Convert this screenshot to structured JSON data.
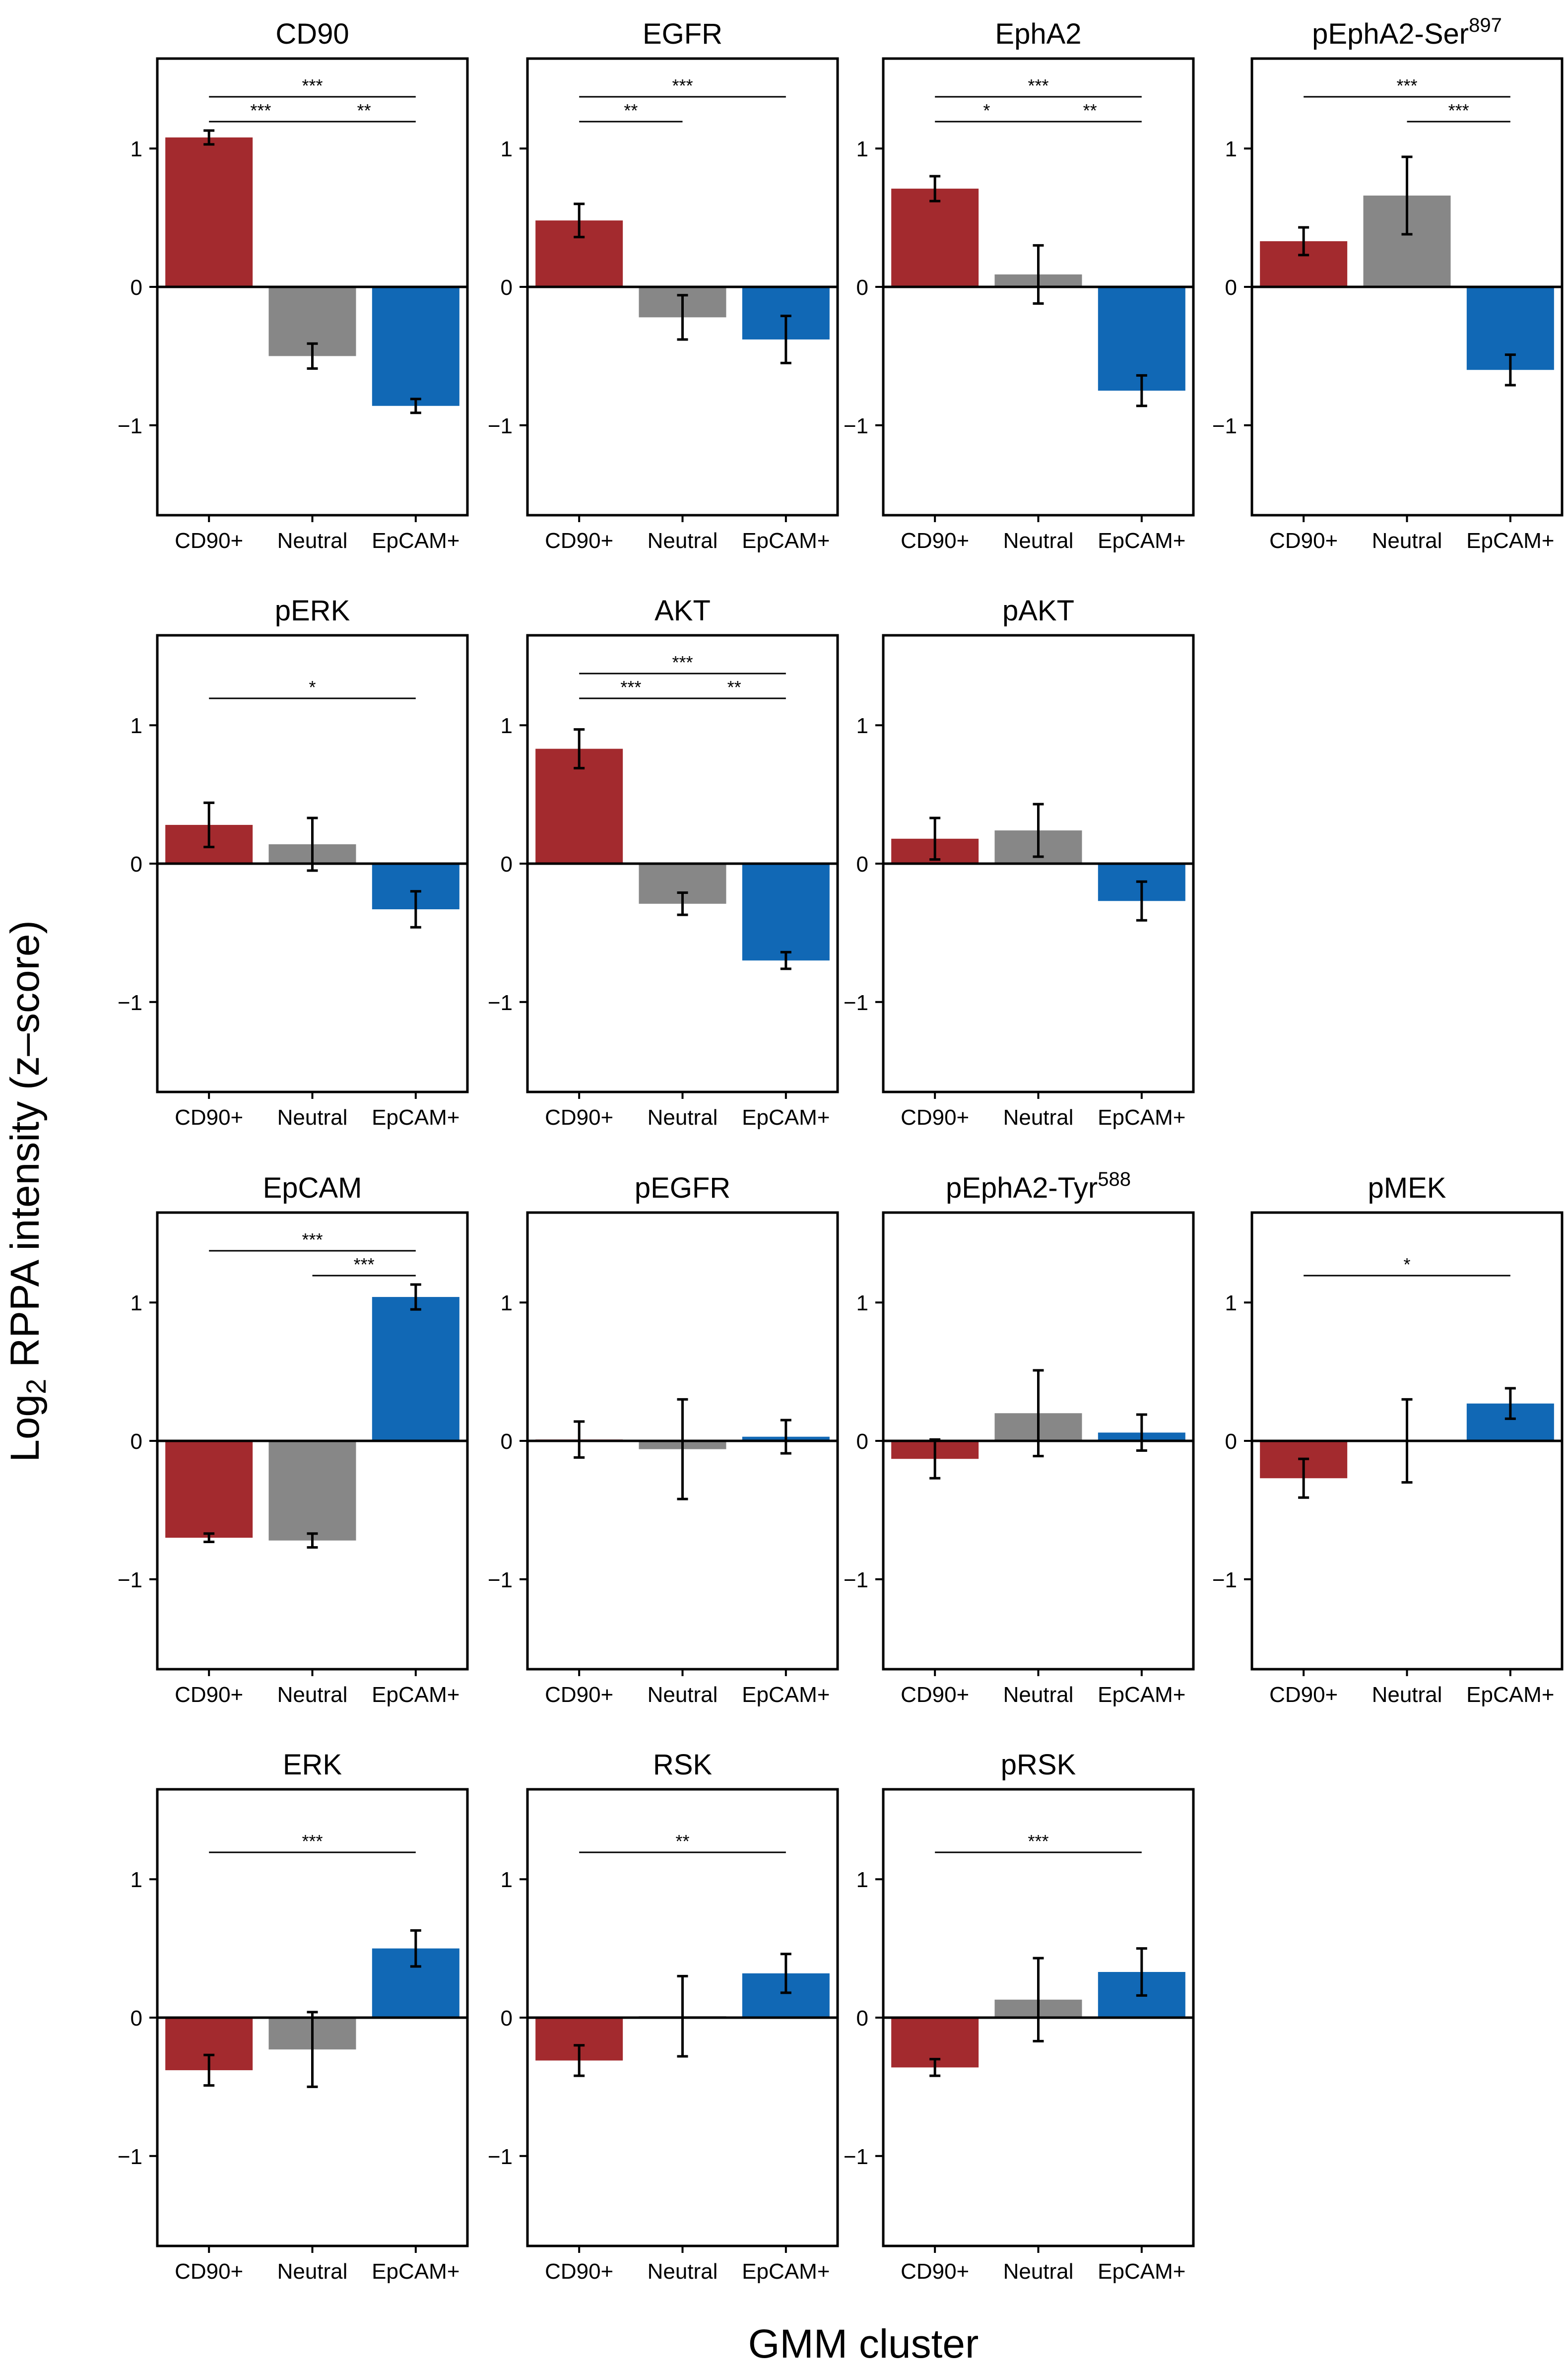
{
  "figure": {
    "ylabel_main": "Log",
    "ylabel_sub": "2",
    "ylabel_rest": " RPPA intensity (z–score)",
    "xlabel": "GMM cluster"
  },
  "colors": {
    "cd90": "#A32A2E",
    "neutral": "#878787",
    "epcam": "#1168B5",
    "axis": "#000000"
  },
  "chart_data": [
    {
      "type": "bar",
      "title": "CD90",
      "title_sup": "",
      "categories": [
        "CD90+",
        "Neutral",
        "EpCAM+"
      ],
      "values": [
        1.08,
        -0.5,
        -0.86
      ],
      "errors": [
        0.05,
        0.09,
        0.05
      ],
      "ylim": [
        -1.65,
        1.65
      ],
      "yticks": [
        -1,
        0,
        1
      ],
      "ytick_labels": [
        "−1",
        "0",
        "1"
      ],
      "significance": [
        {
          "from": 0,
          "to": 2,
          "level": 1,
          "label": "***"
        },
        {
          "from": 0,
          "to": 1,
          "level": 0,
          "label": "***"
        },
        {
          "from": 1,
          "to": 2,
          "level": 0,
          "label": "**"
        }
      ]
    },
    {
      "type": "bar",
      "title": "EGFR",
      "title_sup": "",
      "categories": [
        "CD90+",
        "Neutral",
        "EpCAM+"
      ],
      "values": [
        0.48,
        -0.22,
        -0.38
      ],
      "errors": [
        0.12,
        0.16,
        0.17
      ],
      "ylim": [
        -1.65,
        1.65
      ],
      "yticks": [
        -1,
        0,
        1
      ],
      "ytick_labels": [
        "−1",
        "0",
        "1"
      ],
      "significance": [
        {
          "from": 0,
          "to": 2,
          "level": 1,
          "label": "***"
        },
        {
          "from": 0,
          "to": 1,
          "level": 0,
          "label": "**"
        }
      ]
    },
    {
      "type": "bar",
      "title": "EphA2",
      "title_sup": "",
      "categories": [
        "CD90+",
        "Neutral",
        "EpCAM+"
      ],
      "values": [
        0.71,
        0.09,
        -0.75
      ],
      "errors": [
        0.09,
        0.21,
        0.11
      ],
      "ylim": [
        -1.65,
        1.65
      ],
      "yticks": [
        -1,
        0,
        1
      ],
      "ytick_labels": [
        "−1",
        "0",
        "1"
      ],
      "significance": [
        {
          "from": 0,
          "to": 2,
          "level": 1,
          "label": "***"
        },
        {
          "from": 0,
          "to": 1,
          "level": 0,
          "label": "*"
        },
        {
          "from": 1,
          "to": 2,
          "level": 0,
          "label": "**"
        }
      ]
    },
    {
      "type": "bar",
      "title": "pEphA2-Ser",
      "title_sup": "897",
      "categories": [
        "CD90+",
        "Neutral",
        "EpCAM+"
      ],
      "values": [
        0.33,
        0.66,
        -0.6
      ],
      "errors": [
        0.1,
        0.28,
        0.11
      ],
      "ylim": [
        -1.65,
        1.65
      ],
      "yticks": [
        -1,
        0,
        1
      ],
      "ytick_labels": [
        "−1",
        "0",
        "1"
      ],
      "significance": [
        {
          "from": 0,
          "to": 2,
          "level": 1,
          "label": "***"
        },
        {
          "from": 1,
          "to": 2,
          "level": 0,
          "label": "***"
        }
      ]
    },
    {
      "type": "bar",
      "title": "pERK",
      "title_sup": "",
      "categories": [
        "CD90+",
        "Neutral",
        "EpCAM+"
      ],
      "values": [
        0.28,
        0.14,
        -0.33
      ],
      "errors": [
        0.16,
        0.19,
        0.13
      ],
      "ylim": [
        -1.65,
        1.65
      ],
      "yticks": [
        -1,
        0,
        1
      ],
      "ytick_labels": [
        "−1",
        "0",
        "1"
      ],
      "significance": [
        {
          "from": 0,
          "to": 2,
          "level": 0,
          "label": "*"
        }
      ]
    },
    {
      "type": "bar",
      "title": "AKT",
      "title_sup": "",
      "categories": [
        "CD90+",
        "Neutral",
        "EpCAM+"
      ],
      "values": [
        0.83,
        -0.29,
        -0.7
      ],
      "errors": [
        0.14,
        0.08,
        0.06
      ],
      "ylim": [
        -1.65,
        1.65
      ],
      "yticks": [
        -1,
        0,
        1
      ],
      "ytick_labels": [
        "−1",
        "0",
        "1"
      ],
      "significance": [
        {
          "from": 0,
          "to": 2,
          "level": 1,
          "label": "***"
        },
        {
          "from": 0,
          "to": 1,
          "level": 0,
          "label": "***"
        },
        {
          "from": 1,
          "to": 2,
          "level": 0,
          "label": "**"
        }
      ]
    },
    {
      "type": "bar",
      "title": "pAKT",
      "title_sup": "",
      "categories": [
        "CD90+",
        "Neutral",
        "EpCAM+"
      ],
      "values": [
        0.18,
        0.24,
        -0.27
      ],
      "errors": [
        0.15,
        0.19,
        0.14
      ],
      "ylim": [
        -1.65,
        1.65
      ],
      "yticks": [
        -1,
        0,
        1
      ],
      "ytick_labels": [
        "−1",
        "0",
        "1"
      ],
      "significance": []
    },
    {
      "type": "bar",
      "title": "EpCAM",
      "title_sup": "",
      "categories": [
        "CD90+",
        "Neutral",
        "EpCAM+"
      ],
      "values": [
        -0.7,
        -0.72,
        1.04
      ],
      "errors": [
        0.03,
        0.05,
        0.09
      ],
      "ylim": [
        -1.65,
        1.65
      ],
      "yticks": [
        -1,
        0,
        1
      ],
      "ytick_labels": [
        "−1",
        "0",
        "1"
      ],
      "significance": [
        {
          "from": 0,
          "to": 2,
          "level": 1,
          "label": "***"
        },
        {
          "from": 1,
          "to": 2,
          "level": 0,
          "label": "***"
        }
      ]
    },
    {
      "type": "bar",
      "title": "pEGFR",
      "title_sup": "",
      "categories": [
        "CD90+",
        "Neutral",
        "EpCAM+"
      ],
      "values": [
        0.01,
        -0.06,
        0.03
      ],
      "errors": [
        0.13,
        0.36,
        0.12
      ],
      "ylim": [
        -1.65,
        1.65
      ],
      "yticks": [
        -1,
        0,
        1
      ],
      "ytick_labels": [
        "−1",
        "0",
        "1"
      ],
      "significance": []
    },
    {
      "type": "bar",
      "title": "pEphA2-Tyr",
      "title_sup": "588",
      "categories": [
        "CD90+",
        "Neutral",
        "EpCAM+"
      ],
      "values": [
        -0.13,
        0.2,
        0.06
      ],
      "errors": [
        0.14,
        0.31,
        0.13
      ],
      "ylim": [
        -1.65,
        1.65
      ],
      "yticks": [
        -1,
        0,
        1
      ],
      "ytick_labels": [
        "−1",
        "0",
        "1"
      ],
      "significance": []
    },
    {
      "type": "bar",
      "title": "pMEK",
      "title_sup": "",
      "categories": [
        "CD90+",
        "Neutral",
        "EpCAM+"
      ],
      "values": [
        -0.27,
        0.0,
        0.27
      ],
      "errors": [
        0.14,
        0.3,
        0.11
      ],
      "ylim": [
        -1.65,
        1.65
      ],
      "yticks": [
        -1,
        0,
        1
      ],
      "ytick_labels": [
        "−1",
        "0",
        "1"
      ],
      "significance": [
        {
          "from": 0,
          "to": 2,
          "level": 0,
          "label": "*"
        }
      ]
    },
    {
      "type": "bar",
      "title": "ERK",
      "title_sup": "",
      "categories": [
        "CD90+",
        "Neutral",
        "EpCAM+"
      ],
      "values": [
        -0.38,
        -0.23,
        0.5
      ],
      "errors": [
        0.11,
        0.27,
        0.13
      ],
      "ylim": [
        -1.65,
        1.65
      ],
      "yticks": [
        -1,
        0,
        1
      ],
      "ytick_labels": [
        "−1",
        "0",
        "1"
      ],
      "significance": [
        {
          "from": 0,
          "to": 2,
          "level": 0,
          "label": "***"
        }
      ]
    },
    {
      "type": "bar",
      "title": "RSK",
      "title_sup": "",
      "categories": [
        "CD90+",
        "Neutral",
        "EpCAM+"
      ],
      "values": [
        -0.31,
        0.01,
        0.32
      ],
      "errors": [
        0.11,
        0.29,
        0.14
      ],
      "ylim": [
        -1.65,
        1.65
      ],
      "yticks": [
        -1,
        0,
        1
      ],
      "ytick_labels": [
        "−1",
        "0",
        "1"
      ],
      "significance": [
        {
          "from": 0,
          "to": 2,
          "level": 0,
          "label": "**"
        }
      ]
    },
    {
      "type": "bar",
      "title": "pRSK",
      "title_sup": "",
      "categories": [
        "CD90+",
        "Neutral",
        "EpCAM+"
      ],
      "values": [
        -0.36,
        0.13,
        0.33
      ],
      "errors": [
        0.06,
        0.3,
        0.17
      ],
      "ylim": [
        -1.65,
        1.65
      ],
      "yticks": [
        -1,
        0,
        1
      ],
      "ytick_labels": [
        "−1",
        "0",
        "1"
      ],
      "significance": [
        {
          "from": 0,
          "to": 2,
          "level": 0,
          "label": "***"
        }
      ]
    }
  ]
}
